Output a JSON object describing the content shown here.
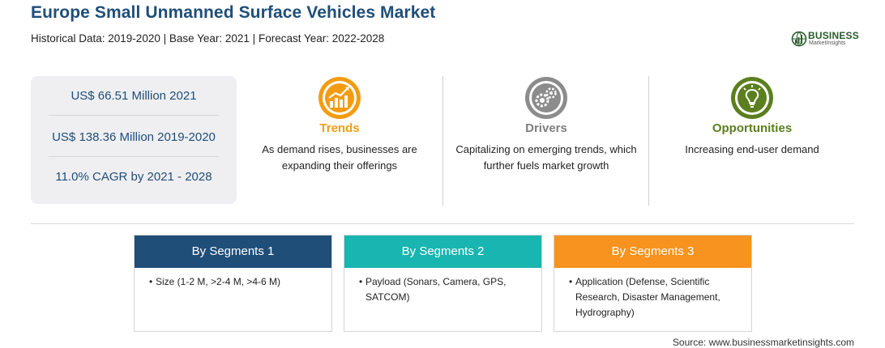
{
  "header": {
    "title": "Europe Small Unmanned Surface Vehicles Market",
    "subtitle": "Historical Data: 2019-2020 | Base Year: 2021 | Forecast Year: 2022-2028"
  },
  "logo": {
    "name": "BUSINESS",
    "tagline": "MarketInsights"
  },
  "stats": [
    "US$ 66.51 Million 2021",
    "US$ 138.36 Million 2019-2020",
    "11.0% CAGR by 2021 - 2028"
  ],
  "features": [
    {
      "icon": "trending-up-chart-icon",
      "title": "Trends",
      "color": "#f39c12",
      "text": "As demand rises, businesses are expanding their offerings"
    },
    {
      "icon": "gears-icon",
      "title": "Drivers",
      "color": "#7f7f7f",
      "text": "Capitalizing on emerging trends, which further fuels market growth"
    },
    {
      "icon": "lightbulb-icon",
      "title": "Opportunities",
      "color": "#5b7f1f",
      "text": "Increasing end-user demand"
    }
  ],
  "segments": [
    {
      "title": "By Segments 1",
      "color": "#1f4e79",
      "items": [
        "Size (1-2 M, >2-4 M, >4-6 M)"
      ]
    },
    {
      "title": "By Segments 2",
      "color": "#19b5b0",
      "items": [
        "Payload (Sonars, Camera, GPS, SATCOM)"
      ]
    },
    {
      "title": "By Segments 3",
      "color": "#f7931e",
      "items": [
        "Application (Defense, Scientific Research, Disaster Management, Hydrography)"
      ]
    }
  ],
  "source": "Source: www.businessmarketinsights.com"
}
